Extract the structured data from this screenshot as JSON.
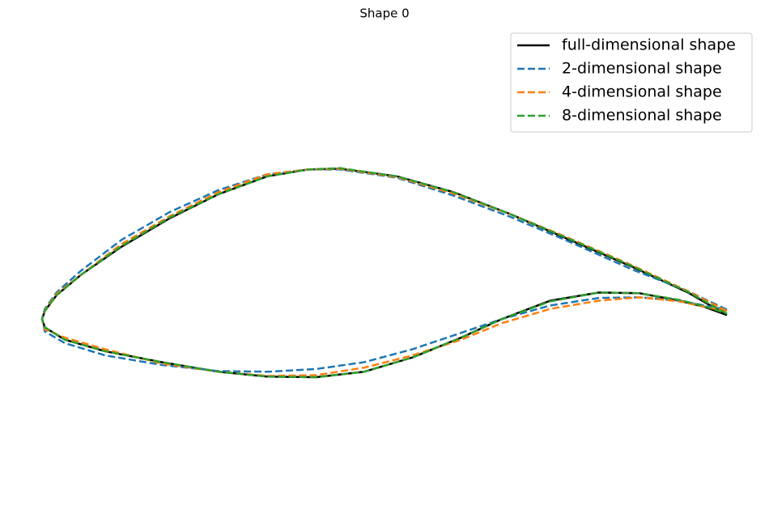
{
  "chart_data": {
    "type": "line",
    "title": "Shape 0",
    "legend": "upper right",
    "xlim": [
      0,
      100
    ],
    "ylim": [
      -31,
      46.7
    ],
    "x": [
      100,
      94.3,
      86.1,
      76.6,
      68.3,
      60.0,
      51.8,
      43.5,
      38.8,
      32.9,
      25.8,
      18.7,
      11.6,
      5.7,
      2.1,
      0.4,
      0,
      0.4,
      3.3,
      9.2,
      17.5,
      25.8,
      32.9,
      40.0,
      47.0,
      54.1,
      61.2,
      67.1,
      74.2,
      81.3,
      87.2,
      93.1,
      96.7,
      100
    ],
    "series": [
      {
        "name": "full-dimensional shape",
        "color": "#000000",
        "linestyle": "solid",
        "values": [
          0.6,
          3.9,
          7.7,
          11.8,
          15.4,
          18.6,
          20.9,
          22.0,
          21.9,
          20.9,
          18.3,
          14.8,
          10.6,
          6.5,
          3.5,
          1.2,
          0,
          -1.2,
          -3.0,
          -4.7,
          -6.3,
          -7.7,
          -8.4,
          -8.5,
          -7.7,
          -5.6,
          -2.7,
          0,
          2.7,
          3.9,
          3.8,
          2.7,
          1.8,
          0.6
        ]
      },
      {
        "name": "2-dimensional shape",
        "color": "#1f77b4",
        "linestyle": "dashed",
        "values": [
          1.4,
          4.1,
          7.3,
          11.5,
          15.0,
          18.1,
          20.7,
          21.9,
          21.9,
          21.2,
          18.9,
          15.7,
          11.6,
          7.1,
          3.9,
          1.5,
          0,
          -1.8,
          -3.5,
          -5.3,
          -6.7,
          -7.6,
          -7.7,
          -7.3,
          -6.3,
          -4.4,
          -2.0,
          0,
          2.0,
          3.1,
          3.2,
          2.7,
          2.0,
          1.4
        ]
      },
      {
        "name": "4-dimensional shape",
        "color": "#ff7f0e",
        "linestyle": "dashed",
        "values": [
          1.2,
          4.1,
          7.9,
          12.0,
          15.4,
          18.4,
          20.8,
          22.0,
          21.9,
          21.2,
          18.6,
          15.1,
          11.0,
          6.5,
          3.7,
          1.3,
          0,
          -1.5,
          -2.7,
          -4.4,
          -6.5,
          -7.7,
          -8.3,
          -8.2,
          -7.1,
          -5.3,
          -3.0,
          -0.6,
          1.5,
          2.7,
          3.2,
          2.6,
          1.8,
          1.2
        ]
      },
      {
        "name": "8-dimensional shape",
        "color": "#2ca02c",
        "linestyle": "dashed",
        "values": [
          0.8,
          4.0,
          7.8,
          11.9,
          15.4,
          18.6,
          20.9,
          22.1,
          21.9,
          20.9,
          18.3,
          14.9,
          10.7,
          6.5,
          3.5,
          1.2,
          0,
          -1.2,
          -3.0,
          -4.7,
          -6.3,
          -7.7,
          -8.4,
          -8.5,
          -7.7,
          -5.6,
          -2.7,
          0,
          2.6,
          3.9,
          3.8,
          2.8,
          1.9,
          0.8
        ]
      }
    ]
  }
}
